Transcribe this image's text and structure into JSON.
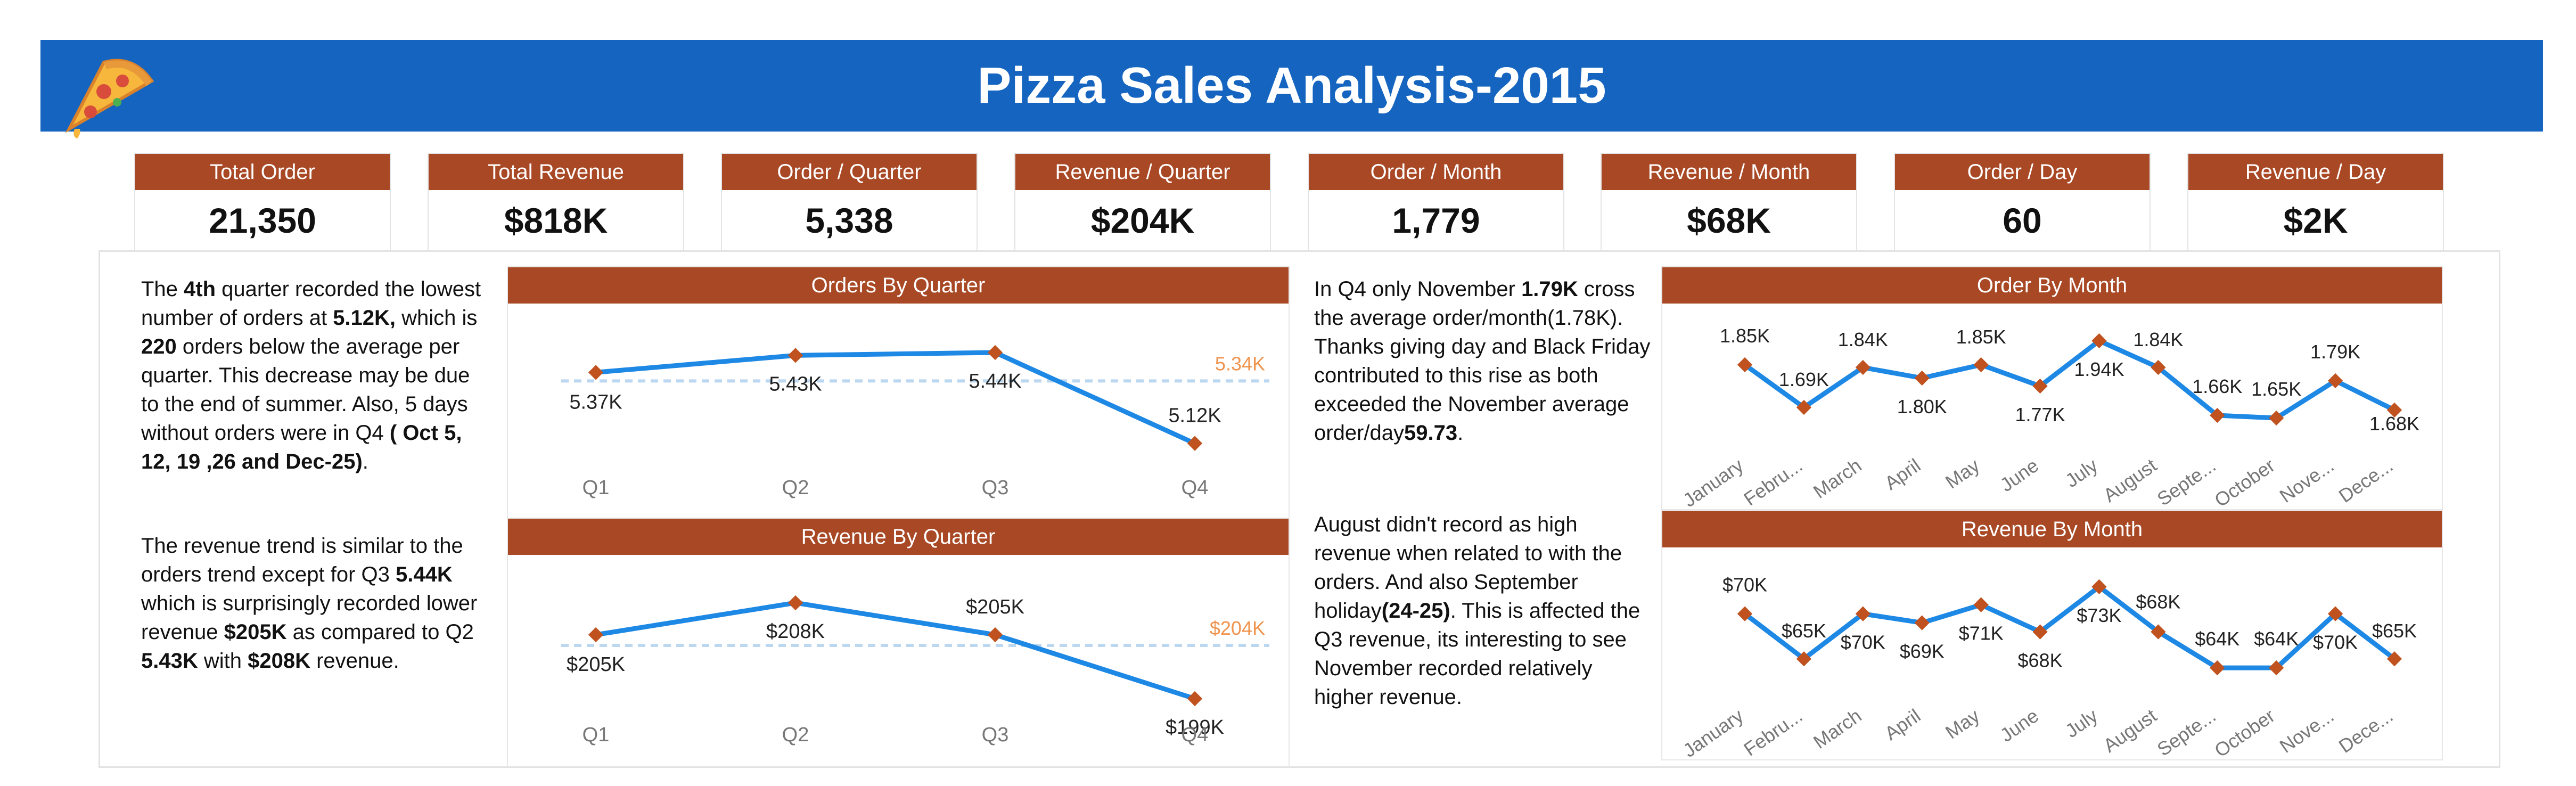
{
  "header": {
    "title": "Pizza Sales Analysis-2015"
  },
  "kpis": [
    {
      "label": "Total Order",
      "value": "21,350"
    },
    {
      "label": "Total Revenue",
      "value": "$818K"
    },
    {
      "label": "Order / Quarter",
      "value": "5,338"
    },
    {
      "label": "Revenue / Quarter",
      "value": "$204K"
    },
    {
      "label": "Order / Month",
      "value": "1,779"
    },
    {
      "label": "Revenue / Month",
      "value": "$68K"
    },
    {
      "label": "Order / Day",
      "value": "60"
    },
    {
      "label": "Revenue / Day",
      "value": "$2K"
    }
  ],
  "insights": {
    "orders_quarter": {
      "p1": "The ",
      "b1": "4th",
      "p2": " quarter recorded the lowest number of orders at ",
      "b2": "5.12K,",
      "p3": " which is ",
      "b3": "220",
      "p4": " orders below the average per quarter. This decrease may be due to the end of summer. Also, 5 days without orders were in Q4 ",
      "b4": "( Oct 5, 12, 19 ,26 and Dec-25)",
      "p5": "."
    },
    "revenue_quarter": {
      "p1": "The revenue trend is similar to the orders trend except for Q3 ",
      "b1": "5.44K",
      "p2": " which is surprisingly recorded lower revenue ",
      "b2": "$205K",
      "p3": " as compared to Q2 ",
      "b3": "5.43K",
      "p4": " with ",
      "b4": "$208K",
      "p5": " revenue."
    },
    "orders_month": {
      "p1": "In Q4 only November ",
      "b1": "1.79K",
      "p2": " cross the average order/month(1.78K). Thanks giving day and Black Friday contributed to this rise as both exceeded the November average order/day",
      "b2": "59.73",
      "p3": "."
    },
    "revenue_month": {
      "p1": "August didn't record as high revenue when related to with the orders. And also September holiday",
      "b1": "(24-25)",
      "p2": ". This is affected the Q3 revenue, its interesting to see November recorded relatively higher revenue."
    }
  },
  "colors": {
    "line": "#1e88e5",
    "marker": "#c0521f",
    "header": "#1565c0",
    "card_head": "#a84825",
    "avg_line": "#bcd7f0",
    "avg_label": "#f0934d"
  },
  "chart_data": [
    {
      "type": "line",
      "title": "Orders By Quarter",
      "categories": [
        "Q1",
        "Q2",
        "Q3",
        "Q4"
      ],
      "values": [
        5370,
        5430,
        5440,
        5120
      ],
      "data_labels": [
        "5.37K",
        "5.43K",
        "5.44K",
        "5.12K"
      ],
      "reference_line": {
        "value": 5340,
        "label": "5.34K"
      },
      "ylim": [
        5050,
        5500
      ]
    },
    {
      "type": "line",
      "title": "Revenue By Quarter",
      "categories": [
        "Q1",
        "Q2",
        "Q3",
        "Q4"
      ],
      "values": [
        205,
        208,
        205,
        199
      ],
      "data_labels": [
        "$205K",
        "$208K",
        "$205K",
        "$199K"
      ],
      "reference_line": {
        "value": 204,
        "label": "$204K"
      },
      "ylim": [
        197,
        210
      ]
    },
    {
      "type": "line",
      "title": "Order By Month",
      "categories": [
        "January",
        "Febru...",
        "March",
        "April",
        "May",
        "June",
        "July",
        "August",
        "Septe...",
        "October",
        "Nove...",
        "Dece..."
      ],
      "values": [
        1850,
        1690,
        1840,
        1800,
        1850,
        1770,
        1940,
        1840,
        1660,
        1650,
        1790,
        1680
      ],
      "data_labels": [
        "1.85K",
        "1.69K",
        "1.84K",
        "1.80K",
        "1.85K",
        "1.77K",
        "1.94K",
        "1.84K",
        "1.66K",
        "1.65K",
        "1.79K",
        "1.68K"
      ],
      "ylim": [
        1600,
        2000
      ]
    },
    {
      "type": "line",
      "title": "Revenue By Month",
      "categories": [
        "January",
        "Febru...",
        "March",
        "April",
        "May",
        "June",
        "July",
        "August",
        "Septe...",
        "October",
        "Nove...",
        "Dece..."
      ],
      "values": [
        70,
        65,
        70,
        69,
        71,
        68,
        73,
        68,
        64,
        64,
        70,
        65
      ],
      "data_labels": [
        "$70K",
        "$65K",
        "$70K",
        "$69K",
        "$71K",
        "$68K",
        "$73K",
        "$68K",
        "$64K",
        "$64K",
        "$70K",
        "$65K"
      ],
      "ylim": [
        62,
        75
      ]
    }
  ]
}
